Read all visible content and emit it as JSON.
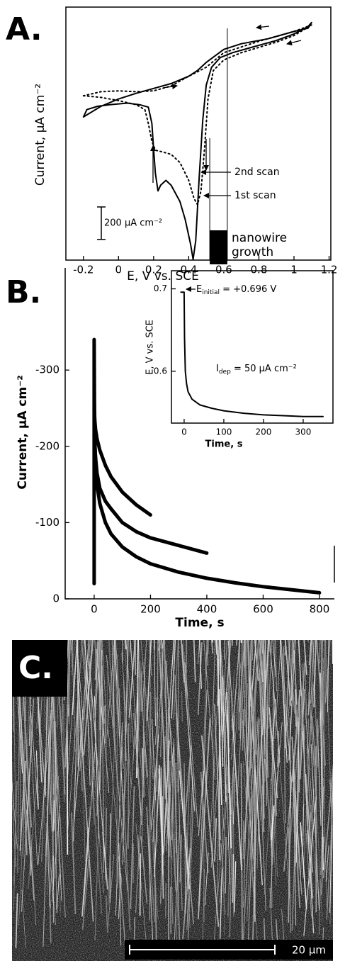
{
  "chart_data": [
    {
      "type": "line",
      "panel_label": "A.",
      "xlabel": "E, V vs. SCE",
      "ylabel": "Current, µA cm⁻²",
      "xlim": [
        -0.3,
        1.21
      ],
      "xticks": [
        -0.2,
        0,
        0.2,
        0.4,
        0.6,
        0.8,
        1,
        1.2
      ],
      "ylim": [
        -925,
        630
      ],
      "scale_bar": {
        "value": 200,
        "label": "200 µA cm⁻²"
      },
      "growth_region": [
        0.52,
        0.62
      ],
      "growth_label": [
        "nanowire",
        "growth"
      ],
      "series": [
        {
          "name": "1st scan",
          "color": "#000000",
          "dash": "solid",
          "x": [
            -0.2,
            -0.18,
            -0.12,
            -0.05,
            0.05,
            0.12,
            0.17,
            0.19,
            0.2,
            0.21,
            0.225,
            0.24,
            0.27,
            0.3,
            0.35,
            0.38,
            0.41,
            0.425,
            0.44,
            0.46,
            0.48,
            0.5,
            0.53,
            0.58,
            0.65,
            0.75,
            0.9,
            1.0,
            1.08,
            1.1,
            1.08,
            1.0,
            0.85,
            0.7,
            0.6,
            0.5,
            0.45,
            0.4,
            0.3,
            0.2,
            0.1,
            0,
            -0.1,
            -0.2
          ],
          "values": [
            -45,
            0,
            20,
            30,
            40,
            30,
            15,
            -85,
            -240,
            -390,
            -500,
            -465,
            -435,
            -465,
            -565,
            -675,
            -825,
            -920,
            -805,
            -415,
            -65,
            150,
            260,
            320,
            350,
            380,
            425,
            465,
            510,
            535,
            500,
            480,
            435,
            405,
            370,
            290,
            240,
            205,
            160,
            130,
            100,
            65,
            20,
            -45
          ]
        },
        {
          "name": "2nd scan",
          "color": "#000000",
          "dash": "dotted",
          "x": [
            -0.2,
            -0.1,
            0,
            0.1,
            0.15,
            0.17,
            0.19,
            0.21,
            0.25,
            0.3,
            0.35,
            0.4,
            0.43,
            0.45,
            0.47,
            0.49,
            0.51,
            0.54,
            0.6,
            0.7,
            0.9,
            1.0,
            1.1,
            1.0,
            0.8,
            0.6,
            0.5,
            0.4,
            0.3,
            0.2,
            0.1,
            0,
            -0.1,
            -0.2
          ],
          "values": [
            85,
            75,
            55,
            30,
            0,
            -85,
            -195,
            -250,
            -260,
            -275,
            -325,
            -435,
            -545,
            -585,
            -500,
            -240,
            65,
            240,
            305,
            350,
            415,
            455,
            520,
            480,
            420,
            350,
            260,
            205,
            145,
            115,
            110,
            115,
            110,
            85
          ]
        }
      ]
    },
    {
      "type": "line",
      "panel_label": "B.",
      "xlabel": "Time, s",
      "ylabel": "Current, µA cm⁻²",
      "xlim": [
        -103,
        853
      ],
      "xticks": [
        0,
        200,
        400,
        600,
        800
      ],
      "ylim": [
        0,
        -434
      ],
      "yticks": [
        0,
        -100,
        -200,
        -300
      ],
      "series": [
        {
          "color": "#000000",
          "x": [
            0,
            2,
            5,
            10,
            20,
            40,
            60,
            100,
            150,
            200
          ],
          "values": [
            -250,
            -235,
            -222,
            -210,
            -195,
            -175,
            -160,
            -140,
            -123,
            -110
          ]
        },
        {
          "color": "#000000",
          "x": [
            0,
            5,
            10,
            20,
            40,
            60,
            100,
            150,
            200,
            300,
            400
          ],
          "values": [
            -215,
            -185,
            -165,
            -145,
            -128,
            -118,
            -100,
            -88,
            -80,
            -70,
            -60
          ]
        },
        {
          "color": "#000000",
          "x": [
            0,
            0,
            1,
            3,
            6,
            10,
            20,
            40,
            60,
            100,
            150,
            200,
            300,
            400,
            500,
            600,
            700,
            800
          ],
          "values": [
            -20,
            -340,
            -260,
            -200,
            -170,
            -150,
            -125,
            -100,
            -85,
            -68,
            -55,
            -46,
            -35,
            -27,
            -21,
            -16,
            -12,
            -8
          ]
        }
      ]
    },
    {
      "type": "line",
      "xlabel": "Time, s",
      "ylabel": "E, V vs. SCE",
      "xlim": [
        -32,
        375
      ],
      "xticks": [
        0,
        100,
        200,
        300
      ],
      "ylim": [
        0.537,
        0.722
      ],
      "yticks": [
        0.6,
        0.7
      ],
      "annotations": [
        {
          "main": "E",
          "sub": "initial",
          "rest": " = +0.696 V"
        },
        {
          "main": "I",
          "sub": "dep",
          "rest": " = 50 µA cm⁻²"
        }
      ],
      "series": [
        {
          "color": "#000000",
          "x": [
            -8,
            -2,
            0,
            1,
            3,
            6,
            10,
            20,
            40,
            70,
            100,
            150,
            200,
            250,
            300,
            350
          ],
          "values": [
            0.696,
            0.696,
            0.696,
            0.64,
            0.6,
            0.585,
            0.575,
            0.566,
            0.559,
            0.555,
            0.552,
            0.549,
            0.547,
            0.546,
            0.545,
            0.545
          ]
        }
      ]
    }
  ],
  "image": {
    "panel_label": "C.",
    "scale_bar_label": "20 µm"
  }
}
